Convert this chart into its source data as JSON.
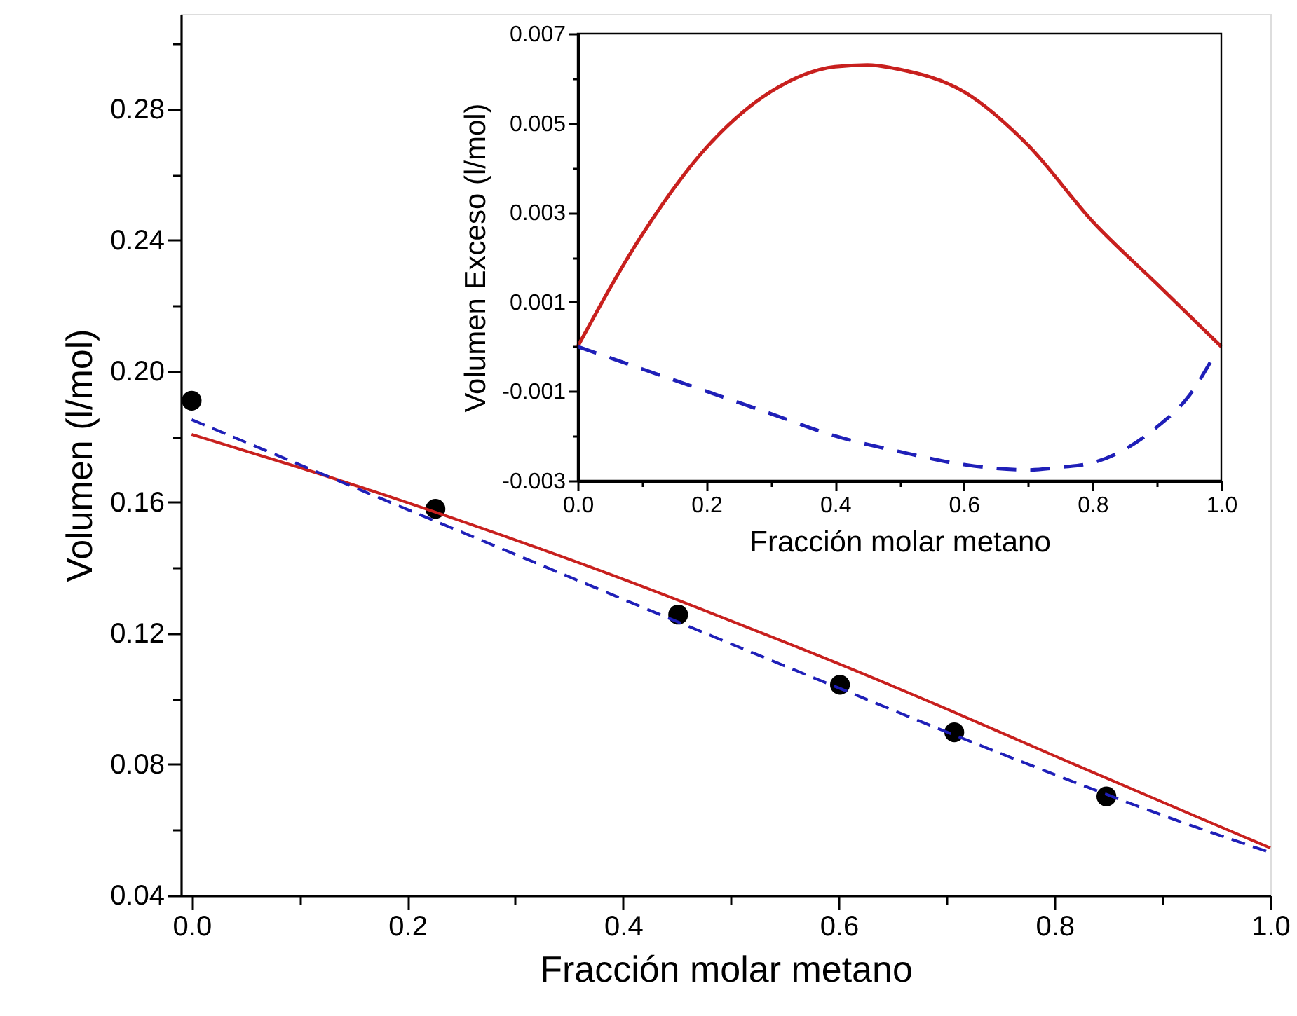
{
  "chart_data": [
    {
      "type": "line",
      "xlabel": "Fracción molar metano",
      "ylabel": "Volumen (l/mol)",
      "xlim": [
        -0.01,
        1.0
      ],
      "ylim": [
        0.04,
        0.309
      ],
      "xticks": [
        {
          "value": 0,
          "label": "0.0"
        },
        {
          "value": 0.1,
          "label": null
        },
        {
          "value": 0.2,
          "label": "0.2"
        },
        {
          "value": 0.3,
          "label": null
        },
        {
          "value": 0.4,
          "label": "0.4"
        },
        {
          "value": 0.5,
          "label": null
        },
        {
          "value": 0.6,
          "label": "0.6"
        },
        {
          "value": 0.7,
          "label": null
        },
        {
          "value": 0.8,
          "label": "0.8"
        },
        {
          "value": 0.9,
          "label": null
        },
        {
          "value": 1.0,
          "label": "1.0"
        }
      ],
      "yticks": [
        0.04,
        {
          "value": 0.06,
          "label": null
        },
        0.08,
        {
          "value": 0.1,
          "label": null
        },
        0.12,
        {
          "value": 0.14,
          "label": null
        },
        0.16,
        {
          "value": 0.18,
          "label": null
        },
        {
          "value": 0.2,
          "label": "0.20"
        },
        {
          "value": 0.22,
          "label": null
        },
        0.24,
        {
          "value": 0.26,
          "label": null
        },
        0.28,
        {
          "value": 0.3,
          "label": null
        }
      ],
      "series": [
        {
          "type": "scatter",
          "color": "#000000",
          "marker": "circle",
          "x": [
            0.0,
            0.226,
            0.451,
            0.601,
            0.707,
            0.848
          ],
          "values": [
            0.191,
            0.158,
            0.1257,
            0.1043,
            0.0898,
            0.0702
          ]
        },
        {
          "type": "line",
          "color": "#c8201e",
          "line_style": "solid",
          "x": [
            0,
            0.1,
            0.2,
            0.3,
            0.4,
            0.5,
            0.6,
            0.7,
            0.8,
            0.9,
            1.0
          ],
          "values": [
            0.1807,
            0.1706,
            0.1599,
            0.1485,
            0.1365,
            0.1238,
            0.1107,
            0.0969,
            0.0826,
            0.0685,
            0.0545
          ]
        },
        {
          "type": "line",
          "color": "#1f1fb8",
          "line_style": "dashed",
          "x": [
            0,
            0.1,
            0.2,
            0.3,
            0.4,
            0.5,
            0.6,
            0.7,
            0.8,
            0.9,
            1.0
          ],
          "values": [
            0.1852,
            0.1715,
            0.1578,
            0.1441,
            0.1304,
            0.1168,
            0.1033,
            0.0899,
            0.0769,
            0.0645,
            0.0531
          ]
        }
      ]
    },
    {
      "type": "line",
      "xlabel": "Fracción molar metano",
      "ylabel": "Volumen Exceso (l/mol)",
      "xlim": [
        0,
        1.0
      ],
      "ylim": [
        -0.003,
        0.007
      ],
      "xticks": [
        {
          "value": 0,
          "label": "0.0"
        },
        {
          "value": 0.1,
          "label": null
        },
        {
          "value": 0.2,
          "label": "0.2"
        },
        {
          "value": 0.3,
          "label": null
        },
        {
          "value": 0.4,
          "label": "0.4"
        },
        {
          "value": 0.5,
          "label": null
        },
        {
          "value": 0.6,
          "label": "0.6"
        },
        {
          "value": 0.7,
          "label": null
        },
        {
          "value": 0.8,
          "label": "0.8"
        },
        {
          "value": 0.9,
          "label": null
        },
        {
          "value": 1.0,
          "label": "1.0"
        }
      ],
      "yticks": [
        -0.003,
        {
          "value": -0.002,
          "label": null
        },
        -0.001,
        {
          "value": 0,
          "label": null
        },
        0.001,
        {
          "value": 0.002,
          "label": null
        },
        0.003,
        {
          "value": 0.004,
          "label": null
        },
        0.005,
        {
          "value": 0.006,
          "label": null
        },
        0.007
      ],
      "series": [
        {
          "type": "line",
          "color": "#c8201e",
          "line_style": "solid",
          "x": [
            0,
            0.1,
            0.2,
            0.3,
            0.4,
            0.45,
            0.5,
            0.6,
            0.7,
            0.8,
            0.9,
            1.0
          ],
          "values": [
            0,
            0.0025,
            0.00445,
            0.0057,
            0.00626,
            0.0063,
            0.0062,
            0.0057,
            0.0045,
            0.0028,
            0.0014,
            0
          ]
        },
        {
          "type": "line",
          "color": "#1f1fb8",
          "line_style": "dashed",
          "x": [
            0,
            0.1,
            0.2,
            0.3,
            0.4,
            0.5,
            0.6,
            0.7,
            0.75,
            0.8,
            0.85,
            0.9,
            0.95,
            0.985
          ],
          "values": [
            0,
            -0.0005,
            -0.001,
            -0.0015,
            -0.002,
            -0.00235,
            -0.00264,
            -0.00276,
            -0.0027,
            -0.0026,
            -0.0023,
            -0.0018,
            -0.0011,
            -0.0003
          ]
        }
      ]
    }
  ]
}
